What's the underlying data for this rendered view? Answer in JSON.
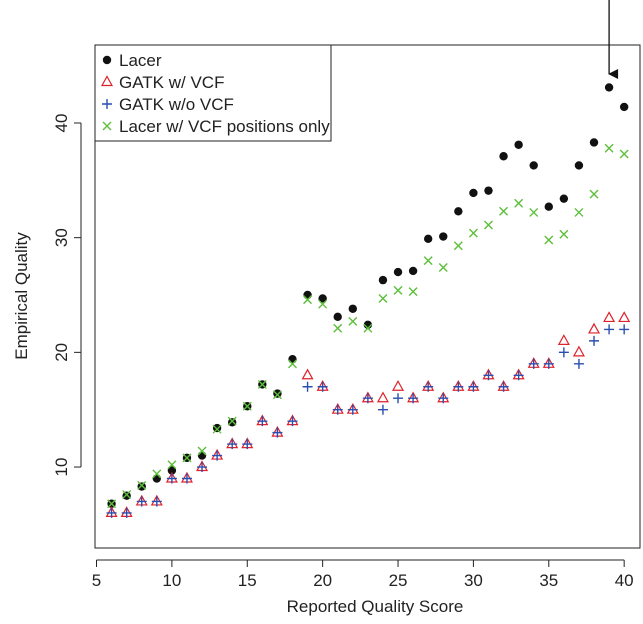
{
  "chart_data": {
    "type": "scatter",
    "x_label": "Reported Quality Score",
    "y_label": "Empirical Quality",
    "x": [
      6,
      7,
      8,
      9,
      10,
      11,
      12,
      13,
      14,
      15,
      16,
      17,
      18,
      19,
      20,
      21,
      22,
      23,
      24,
      25,
      26,
      27,
      28,
      29,
      30,
      31,
      32,
      33,
      34,
      35,
      36,
      37,
      38,
      39,
      40
    ],
    "series": [
      {
        "name": "Lacer",
        "color": "#111111",
        "marker": "circle",
        "values": [
          6.8,
          7.5,
          8.3,
          9.0,
          9.7,
          10.8,
          11.0,
          13.4,
          13.9,
          15.3,
          17.2,
          16.4,
          19.4,
          25.0,
          24.7,
          23.1,
          23.8,
          22.4,
          26.3,
          27.0,
          27.1,
          29.9,
          30.1,
          32.3,
          33.9,
          34.1,
          37.1,
          38.1,
          36.3,
          32.7,
          33.4,
          36.3,
          38.3,
          43.1,
          41.4
        ]
      },
      {
        "name": "GATK w/ VCF",
        "color": "#e0202a",
        "marker": "triangle",
        "values": [
          6,
          6,
          7,
          7,
          9,
          9,
          10,
          11,
          12,
          12,
          14,
          13,
          14,
          18,
          17,
          15,
          15,
          16,
          16,
          17,
          16,
          17,
          16,
          17,
          17,
          18,
          17,
          18,
          19,
          19,
          21,
          20,
          22,
          23,
          23
        ]
      },
      {
        "name": "GATK w/o VCF",
        "color": "#2a4fb0",
        "marker": "plus",
        "values": [
          6,
          6,
          7,
          7,
          9,
          9,
          10,
          11,
          12,
          12,
          14,
          13,
          14,
          17,
          17,
          15,
          15,
          16,
          15,
          16,
          16,
          17,
          16,
          17,
          17,
          18,
          17,
          18,
          19,
          19,
          20,
          19,
          21,
          22,
          22
        ]
      },
      {
        "name": "Lacer w/ VCF positions only",
        "color": "#5cbf3a",
        "marker": "x",
        "values": [
          6.8,
          7.6,
          8.4,
          9.4,
          10.2,
          10.8,
          11.4,
          13.3,
          14.0,
          15.3,
          17.2,
          16.3,
          19.0,
          24.6,
          24.2,
          22.1,
          22.7,
          22.1,
          24.7,
          25.4,
          25.3,
          28.0,
          27.4,
          29.3,
          30.4,
          31.1,
          32.3,
          33.0,
          32.2,
          29.8,
          30.3,
          32.2,
          33.8,
          37.8,
          37.3
        ]
      }
    ],
    "xlim": [
      4.9,
      41.05
    ],
    "xticks": [
      5,
      10,
      15,
      20,
      25,
      30,
      35,
      40
    ],
    "ylim": [
      2.94,
      46.8
    ],
    "yticks": [
      10,
      20,
      30,
      40
    ],
    "legend": "top-left",
    "grid": false
  }
}
